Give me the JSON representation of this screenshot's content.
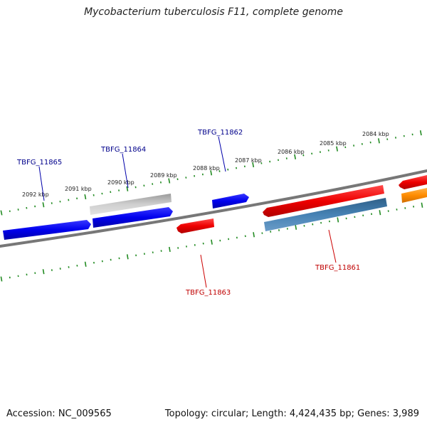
{
  "title": "Mycobacterium tuberculosis F11, complete genome",
  "footer": {
    "accession": "Accession: NC_009565",
    "topology": "Topology: circular; Length: 4,424,435 bp; Genes: 3,989"
  },
  "scale_labels": [
    "2092 kbp",
    "2091 kbp",
    "2090 kbp",
    "2089 kbp",
    "2088 kbp",
    "2087 kbp",
    "2086 kbp",
    "2085 kbp",
    "2084 kbp"
  ],
  "gene_labels": [
    {
      "text": "TBFG_11865",
      "color": "#00008b"
    },
    {
      "text": "TBFG_11864",
      "color": "#00008b"
    },
    {
      "text": "TBFG_11862",
      "color": "#00008b"
    },
    {
      "text": "TBFG_11863",
      "color": "#c00000"
    },
    {
      "text": "TBFG_11861",
      "color": "#c00000"
    }
  ],
  "colors": {
    "blue_gene": "#0000ee",
    "red_gene": "#ee0000",
    "grey_gene": "#bdbdbd",
    "steelblue_gene": "#4682b4",
    "orange_gene": "#ff8c00",
    "backbone": "#777777",
    "ticks": "#228b22"
  }
}
